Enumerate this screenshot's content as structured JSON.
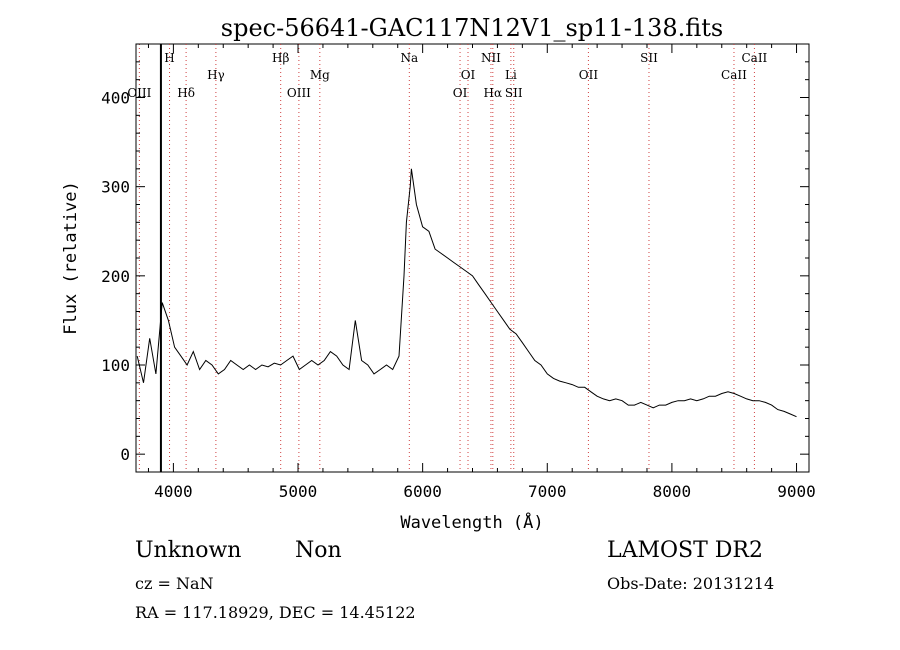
{
  "chart_data": {
    "type": "line",
    "title": "spec-56641-GAC117N12V1_sp11-138.fits",
    "xlabel": "Wavelength (Å)",
    "ylabel": "Flux (relative)",
    "xlim": [
      3700,
      9100
    ],
    "ylim": [
      -20,
      460
    ],
    "x_ticks": [
      4000,
      5000,
      6000,
      7000,
      8000,
      9000
    ],
    "y_ticks": [
      0,
      100,
      200,
      300,
      400
    ],
    "grid": false,
    "vertical_marker": 3900,
    "lines": [
      {
        "label": "OIII",
        "wave": 3727,
        "row": "lower"
      },
      {
        "label": "H",
        "wave": 3969,
        "row": "upper"
      },
      {
        "label": "Hδ",
        "wave": 4102,
        "row": "lower"
      },
      {
        "label": "Hγ",
        "wave": 4341,
        "row": "middle"
      },
      {
        "label": "Hβ",
        "wave": 4861,
        "row": "upper"
      },
      {
        "label": "OIII",
        "wave": 5007,
        "row": "lower"
      },
      {
        "label": "Mg",
        "wave": 5175,
        "row": "middle"
      },
      {
        "label": "Na",
        "wave": 5893,
        "row": "upper"
      },
      {
        "label": "OI",
        "wave": 6300,
        "row": "lower"
      },
      {
        "label": "OI",
        "wave": 6364,
        "row": "middle"
      },
      {
        "label": "NII",
        "wave": 6548,
        "row": "upper"
      },
      {
        "label": "Hα",
        "wave": 6563,
        "row": "lower"
      },
      {
        "label": "Li",
        "wave": 6708,
        "row": "middle"
      },
      {
        "label": "SII",
        "wave": 6731,
        "row": "lower"
      },
      {
        "label": "OII",
        "wave": 7330,
        "row": "middle"
      },
      {
        "label": "SII",
        "wave": 7816,
        "row": "upper"
      },
      {
        "label": "CaII",
        "wave": 8498,
        "row": "middle"
      },
      {
        "label": "CaII",
        "wave": 8662,
        "row": "upper"
      }
    ],
    "series": [
      {
        "x": [
          3710,
          3760,
          3810,
          3860,
          3910,
          3960,
          4010,
          4060,
          4110,
          4160,
          4210,
          4260,
          4310,
          4360,
          4410,
          4460,
          4510,
          4560,
          4610,
          4660,
          4710,
          4760,
          4810,
          4860,
          4910,
          4960,
          5010,
          5060,
          5110,
          5160,
          5210,
          5260,
          5310,
          5360,
          5410,
          5460,
          5510,
          5560,
          5610,
          5660,
          5710,
          5760,
          5810,
          5850,
          5870,
          5900,
          5910,
          5950,
          6000,
          6050,
          6100,
          6150,
          6200,
          6250,
          6300,
          6350,
          6400,
          6450,
          6500,
          6550,
          6600,
          6650,
          6700,
          6750,
          6800,
          6850,
          6900,
          6950,
          7000,
          7050,
          7100,
          7150,
          7200,
          7250,
          7300,
          7350,
          7400,
          7450,
          7500,
          7550,
          7600,
          7650,
          7700,
          7750,
          7800,
          7850,
          7900,
          7950,
          8000,
          8050,
          8100,
          8150,
          8200,
          8250,
          8300,
          8350,
          8400,
          8450,
          8500,
          8550,
          8600,
          8650,
          8700,
          8750,
          8800,
          8850,
          8900,
          8950,
          9000
        ],
        "y": [
          110,
          80,
          130,
          90,
          170,
          150,
          120,
          110,
          100,
          115,
          95,
          105,
          100,
          90,
          95,
          105,
          100,
          95,
          100,
          95,
          100,
          98,
          102,
          100,
          105,
          110,
          95,
          100,
          105,
          100,
          105,
          115,
          110,
          100,
          95,
          150,
          105,
          100,
          90,
          95,
          100,
          95,
          110,
          200,
          260,
          300,
          320,
          280,
          255,
          250,
          230,
          225,
          220,
          215,
          210,
          205,
          200,
          190,
          180,
          170,
          160,
          150,
          140,
          135,
          125,
          115,
          105,
          100,
          90,
          85,
          82,
          80,
          78,
          75,
          75,
          70,
          65,
          62,
          60,
          62,
          60,
          55,
          55,
          58,
          55,
          52,
          55,
          55,
          58,
          60,
          60,
          62,
          60,
          62,
          65,
          65,
          68,
          70,
          68,
          65,
          62,
          60,
          60,
          58,
          55,
          50,
          48,
          45,
          42
        ]
      }
    ]
  },
  "footer": {
    "object_class": "Unknown",
    "object_subclass": "Non",
    "survey": "LAMOST DR2",
    "cz": "cz = NaN",
    "obs_date": "Obs-Date: 20131214",
    "radec": "RA = 117.18929, DEC =  14.45122"
  }
}
